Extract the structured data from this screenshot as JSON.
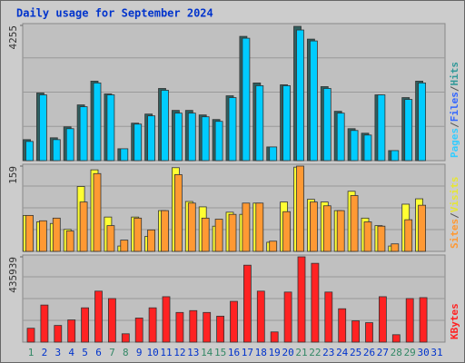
{
  "title": "Daily usage for September 2024",
  "chart_data": [
    {
      "type": "bar",
      "ylim": [
        0,
        4255
      ],
      "yticks": [
        4255
      ],
      "legend": [
        {
          "text": "Pages",
          "color": "#33ccff"
        },
        {
          "text": "/",
          "color": "#555555"
        },
        {
          "text": "Files",
          "color": "#3366ff"
        },
        {
          "text": "/",
          "color": "#555555"
        },
        {
          "text": "Hits",
          "color": "#339999"
        }
      ],
      "series": [
        {
          "color": "#2f5f5f",
          "values": [
            661,
            2128,
            719,
            1064,
            1754,
            2501,
            2099,
            374,
            1179,
            1466,
            2271,
            1581,
            1581,
            1438,
            1294,
            2041,
            3910,
            2444,
            431,
            2386,
            4226,
            3824,
            2329,
            1553,
            1006,
            863,
            2070,
            316,
            1984,
            2501,
            0
          ]
        },
        {
          "color": "#00ccff",
          "values": [
            604,
            2070,
            661,
            1006,
            1696,
            2444,
            2070,
            374,
            1150,
            1409,
            2214,
            1495,
            1495,
            1380,
            1236,
            1984,
            3852,
            2358,
            431,
            2358,
            4111,
            3766,
            2271,
            1495,
            949,
            805,
            2070,
            316,
            1926,
            2444,
            0
          ]
        }
      ]
    },
    {
      "type": "bar",
      "ylim": [
        0,
        159
      ],
      "yticks": [
        159
      ],
      "legend": [
        {
          "text": "Sites",
          "color": "#ff9933"
        },
        {
          "text": "/",
          "color": "#555555"
        },
        {
          "text": "Visits",
          "color": "#e6e633"
        }
      ],
      "series": [
        {
          "color": "#ffff33",
          "values": [
            67,
            55,
            52,
            41,
            121,
            152,
            64,
            10,
            64,
            28,
            76,
            156,
            93,
            83,
            47,
            73,
            69,
            90,
            17,
            92,
            157,
            97,
            92,
            76,
            112,
            62,
            48,
            10,
            88,
            98,
            0
          ]
        },
        {
          "color": "#ff9933",
          "values": [
            67,
            57,
            62,
            38,
            92,
            145,
            48,
            21,
            62,
            40,
            76,
            143,
            90,
            62,
            60,
            69,
            90,
            90,
            19,
            74,
            159,
            92,
            85,
            76,
            104,
            55,
            47,
            14,
            59,
            86,
            0
          ]
        }
      ]
    },
    {
      "type": "bar",
      "ylim": [
        0,
        435939
      ],
      "yticks": [
        435939
      ],
      "legend": [
        {
          "text": "KBytes",
          "color": "#ff2222"
        }
      ],
      "categories": [
        "1",
        "2",
        "3",
        "4",
        "5",
        "6",
        "7",
        "8",
        "9",
        "10",
        "11",
        "12",
        "13",
        "14",
        "15",
        "16",
        "17",
        "18",
        "19",
        "20",
        "21",
        "22",
        "23",
        "24",
        "25",
        "26",
        "27",
        "28",
        "29",
        "30",
        "31"
      ],
      "highlight_color": "#338866",
      "highlight_indices": [
        0,
        6,
        7,
        13,
        14,
        20,
        21,
        27,
        28
      ],
      "series": [
        {
          "color": "#ff2222",
          "values": [
            71070,
            189520,
            85284,
            113712,
            175306,
            260590,
            222686,
            42642,
            123188,
            175306,
            232162,
            151616,
            161092,
            151616,
            132664,
            208472,
            393254,
            260590,
            52118,
            255852,
            435896,
            402730,
            255852,
            170568,
            108974,
            99498,
            232162,
            37904,
            222686,
            227424,
            0
          ]
        }
      ]
    }
  ]
}
